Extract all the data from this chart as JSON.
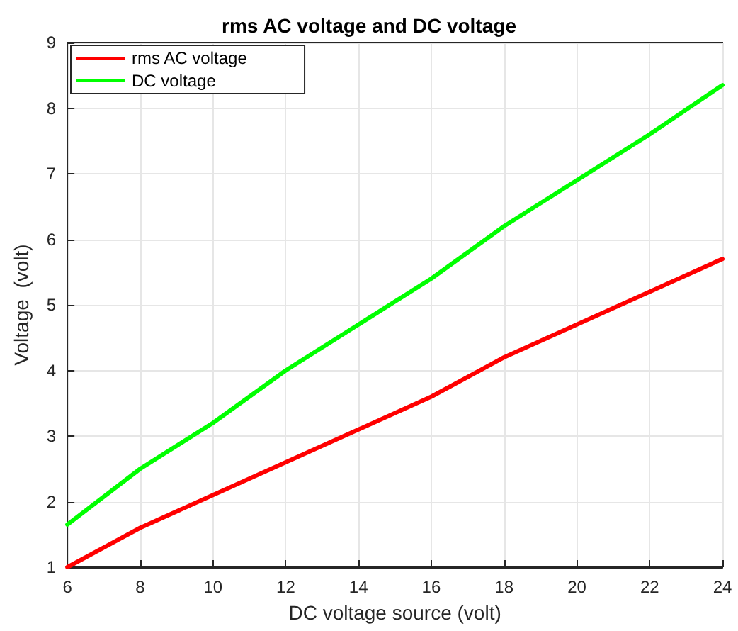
{
  "chart_data": {
    "type": "line",
    "title": "rms AC voltage and DC voltage",
    "xlabel": "DC voltage source (volt)",
    "ylabel": "Voltage  (volt)",
    "x": [
      6,
      8,
      10,
      12,
      14,
      16,
      18,
      20,
      22,
      24
    ],
    "series": [
      {
        "name": "rms AC voltage",
        "color": "#ff0000",
        "values": [
          1,
          1.6,
          2.1,
          2.6,
          3.1,
          3.6,
          4.2,
          4.7,
          5.2,
          5.7
        ]
      },
      {
        "name": "DC voltage",
        "color": "#00ff00",
        "values": [
          1.65,
          2.5,
          3.2,
          4.0,
          4.7,
          5.4,
          6.2,
          6.9,
          7.6,
          8.35
        ]
      }
    ],
    "xlim": [
      6,
      24
    ],
    "xticks": [
      6,
      8,
      10,
      12,
      14,
      16,
      18,
      20,
      22,
      24
    ],
    "ylim": [
      1,
      9
    ],
    "yticks": [
      1,
      2,
      3,
      4,
      5,
      6,
      7,
      8,
      9
    ],
    "grid": true,
    "legend": "top left",
    "marker": "none",
    "line_style": "solid"
  }
}
